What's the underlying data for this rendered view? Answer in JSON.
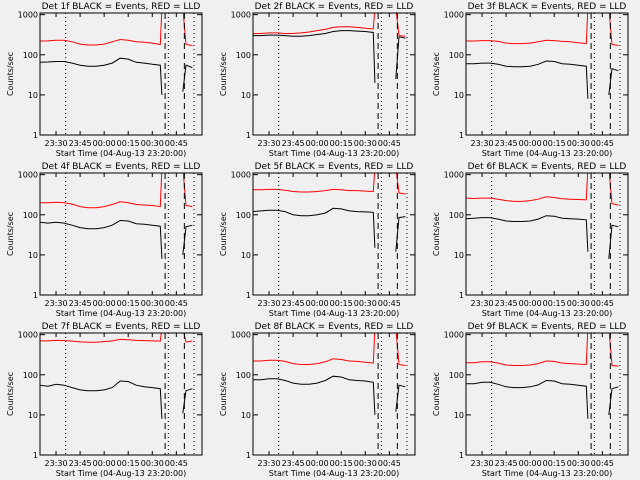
{
  "chart_data": {
    "type": "line",
    "layout": "3x3 grid",
    "x_unit": "minutes since 23:20:00",
    "xlim": [
      0,
      101
    ],
    "ylim": [
      1,
      1100
    ],
    "yscale": "log",
    "xlabel": "Start Time (04-Aug-13 23:20:00)",
    "ylabel": "Counts/sec",
    "x_ticks": [
      {
        "v": 10,
        "label": "23:30"
      },
      {
        "v": 25,
        "label": "23:45"
      },
      {
        "v": 40,
        "label": "00:00"
      },
      {
        "v": 55,
        "label": "00:15"
      },
      {
        "v": 70,
        "label": "00:30"
      },
      {
        "v": 85,
        "label": "00:45"
      }
    ],
    "y_ticks": [
      {
        "v": 1,
        "label": "1"
      },
      {
        "v": 10,
        "label": "10"
      },
      {
        "v": 100,
        "label": "100"
      },
      {
        "v": 1000,
        "label": "1000"
      }
    ],
    "dotted_lines": [
      16,
      80,
      96
    ],
    "dashed_lines": [
      78,
      90
    ],
    "colors": {
      "events": "#000000",
      "lld": "#ff0000"
    },
    "x": [
      0,
      5,
      10,
      15,
      20,
      25,
      30,
      35,
      40,
      45,
      50,
      55,
      60,
      65,
      70,
      75,
      76,
      78,
      89,
      91,
      95
    ],
    "panels": [
      {
        "title": "Det 1f BLACK = Events, RED = LLD",
        "events": [
          65,
          66,
          68,
          68,
          62,
          55,
          52,
          52,
          55,
          62,
          82,
          78,
          65,
          62,
          58,
          55,
          10,
          null,
          12,
          55,
          48
        ],
        "lld": [
          220,
          222,
          230,
          230,
          210,
          185,
          175,
          175,
          185,
          210,
          240,
          230,
          210,
          205,
          195,
          180,
          1500,
          1500,
          1500,
          180,
          170
        ]
      },
      {
        "title": "Det 2f BLACK = Events, RED = LLD",
        "events": [
          300,
          300,
          310,
          310,
          300,
          290,
          290,
          300,
          320,
          340,
          380,
          400,
          400,
          390,
          380,
          360,
          20,
          null,
          25,
          280,
          260
        ],
        "lld": [
          340,
          340,
          350,
          350,
          340,
          340,
          350,
          370,
          400,
          430,
          480,
          500,
          500,
          480,
          460,
          440,
          1500,
          1500,
          1500,
          300,
          290
        ]
      },
      {
        "title": "Det 3f BLACK = Events, RED = LLD",
        "events": [
          60,
          60,
          62,
          62,
          58,
          52,
          50,
          50,
          52,
          58,
          70,
          68,
          60,
          58,
          55,
          52,
          8,
          null,
          10,
          45,
          40
        ],
        "lld": [
          220,
          220,
          225,
          225,
          215,
          195,
          190,
          190,
          195,
          210,
          230,
          225,
          215,
          210,
          200,
          190,
          1500,
          1500,
          1500,
          180,
          170
        ]
      },
      {
        "title": "Det 4f BLACK = Events, RED = LLD",
        "events": [
          65,
          62,
          65,
          62,
          55,
          48,
          45,
          45,
          48,
          55,
          72,
          70,
          60,
          58,
          55,
          52,
          8,
          null,
          10,
          50,
          55
        ],
        "lld": [
          200,
          200,
          205,
          200,
          185,
          160,
          150,
          150,
          160,
          180,
          210,
          200,
          180,
          175,
          170,
          160,
          1500,
          1500,
          1500,
          170,
          160
        ]
      },
      {
        "title": "Det 5f BLACK = Events, RED = LLD",
        "events": [
          120,
          125,
          130,
          130,
          120,
          100,
          95,
          95,
          100,
          110,
          145,
          140,
          125,
          120,
          118,
          115,
          15,
          null,
          12,
          85,
          90
        ],
        "lld": [
          420,
          420,
          430,
          430,
          410,
          380,
          370,
          370,
          380,
          400,
          430,
          420,
          400,
          400,
          390,
          380,
          1500,
          1500,
          1500,
          350,
          330
        ]
      },
      {
        "title": "Det 6f BLACK = Events, RED = LLD",
        "events": [
          80,
          82,
          85,
          85,
          78,
          70,
          68,
          68,
          70,
          78,
          95,
          92,
          82,
          80,
          78,
          75,
          12,
          null,
          8,
          55,
          50
        ],
        "lld": [
          260,
          255,
          260,
          260,
          245,
          225,
          215,
          215,
          225,
          245,
          280,
          270,
          250,
          245,
          240,
          235,
          1500,
          1500,
          1500,
          190,
          175
        ]
      },
      {
        "title": "Det 7f BLACK = Events, RED = LLD",
        "events": [
          55,
          52,
          58,
          55,
          48,
          42,
          40,
          40,
          42,
          48,
          70,
          68,
          55,
          50,
          48,
          45,
          8,
          null,
          11,
          40,
          45
        ],
        "lld": [
          700,
          700,
          720,
          710,
          690,
          660,
          650,
          650,
          670,
          700,
          760,
          750,
          720,
          710,
          700,
          690,
          1500,
          1500,
          1500,
          650,
          700
        ]
      },
      {
        "title": "Det 8f BLACK = Events, RED = LLD",
        "events": [
          75,
          75,
          80,
          80,
          72,
          62,
          58,
          58,
          62,
          72,
          92,
          88,
          75,
          72,
          70,
          65,
          10,
          null,
          12,
          55,
          50
        ],
        "lld": [
          220,
          220,
          230,
          230,
          215,
          190,
          180,
          180,
          190,
          210,
          250,
          240,
          220,
          215,
          205,
          195,
          1500,
          1500,
          1500,
          180,
          170
        ]
      },
      {
        "title": "Det 9f BLACK = Events, RED = LLD",
        "events": [
          60,
          60,
          65,
          65,
          58,
          50,
          48,
          48,
          50,
          56,
          72,
          70,
          60,
          58,
          55,
          52,
          8,
          null,
          10,
          45,
          50
        ],
        "lld": [
          200,
          200,
          210,
          210,
          195,
          175,
          170,
          170,
          175,
          190,
          220,
          215,
          195,
          190,
          185,
          180,
          1500,
          1500,
          1500,
          170,
          165
        ]
      }
    ]
  }
}
